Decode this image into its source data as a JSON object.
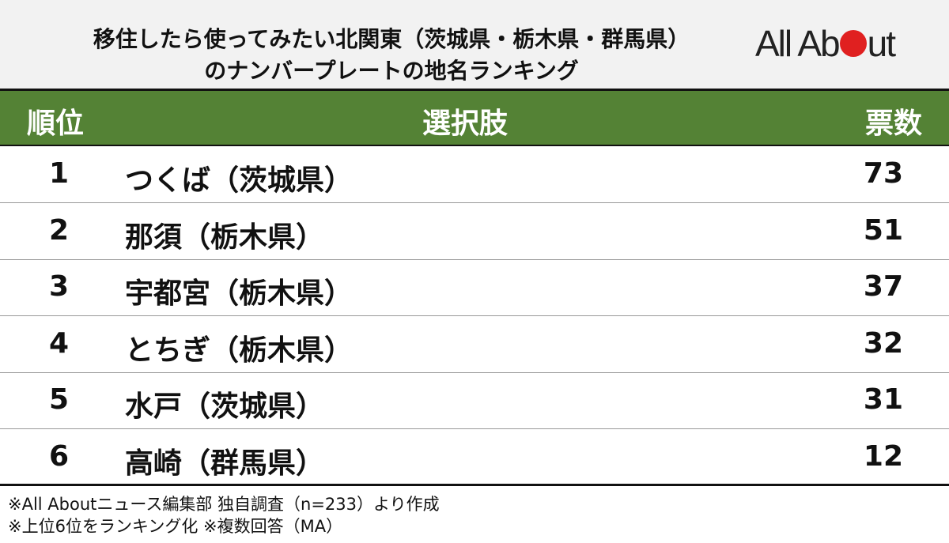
{
  "title_lines": [
    "移住したら使ってみたい北関東（茨城県・栃木県・群馬県）",
    "のナンバープレートの地名ランキング"
  ],
  "logo": {
    "text_before": "All Ab",
    "text_after": "ut",
    "dot_color": "#e02020"
  },
  "colors": {
    "header_bg": "#548235",
    "title_bg": "#f2f2f2"
  },
  "chart_data": {
    "type": "table",
    "columns": [
      "順位",
      "選択肢",
      "票数"
    ],
    "rows": [
      {
        "rank": "1",
        "name": "つくば（茨城県）",
        "votes": "73"
      },
      {
        "rank": "2",
        "name": "那須（栃木県）",
        "votes": "51"
      },
      {
        "rank": "3",
        "name": "宇都宮（栃木県）",
        "votes": "37"
      },
      {
        "rank": "4",
        "name": "とちぎ（栃木県）",
        "votes": "32"
      },
      {
        "rank": "5",
        "name": "水戸（茨城県）",
        "votes": "31"
      },
      {
        "rank": "6",
        "name": "高崎（群馬県）",
        "votes": "12"
      }
    ]
  },
  "notes": [
    "※All Aboutニュース編集部 独自調査（n=233）より作成",
    "※上位6位をランキング化 ※複数回答（MA）"
  ]
}
